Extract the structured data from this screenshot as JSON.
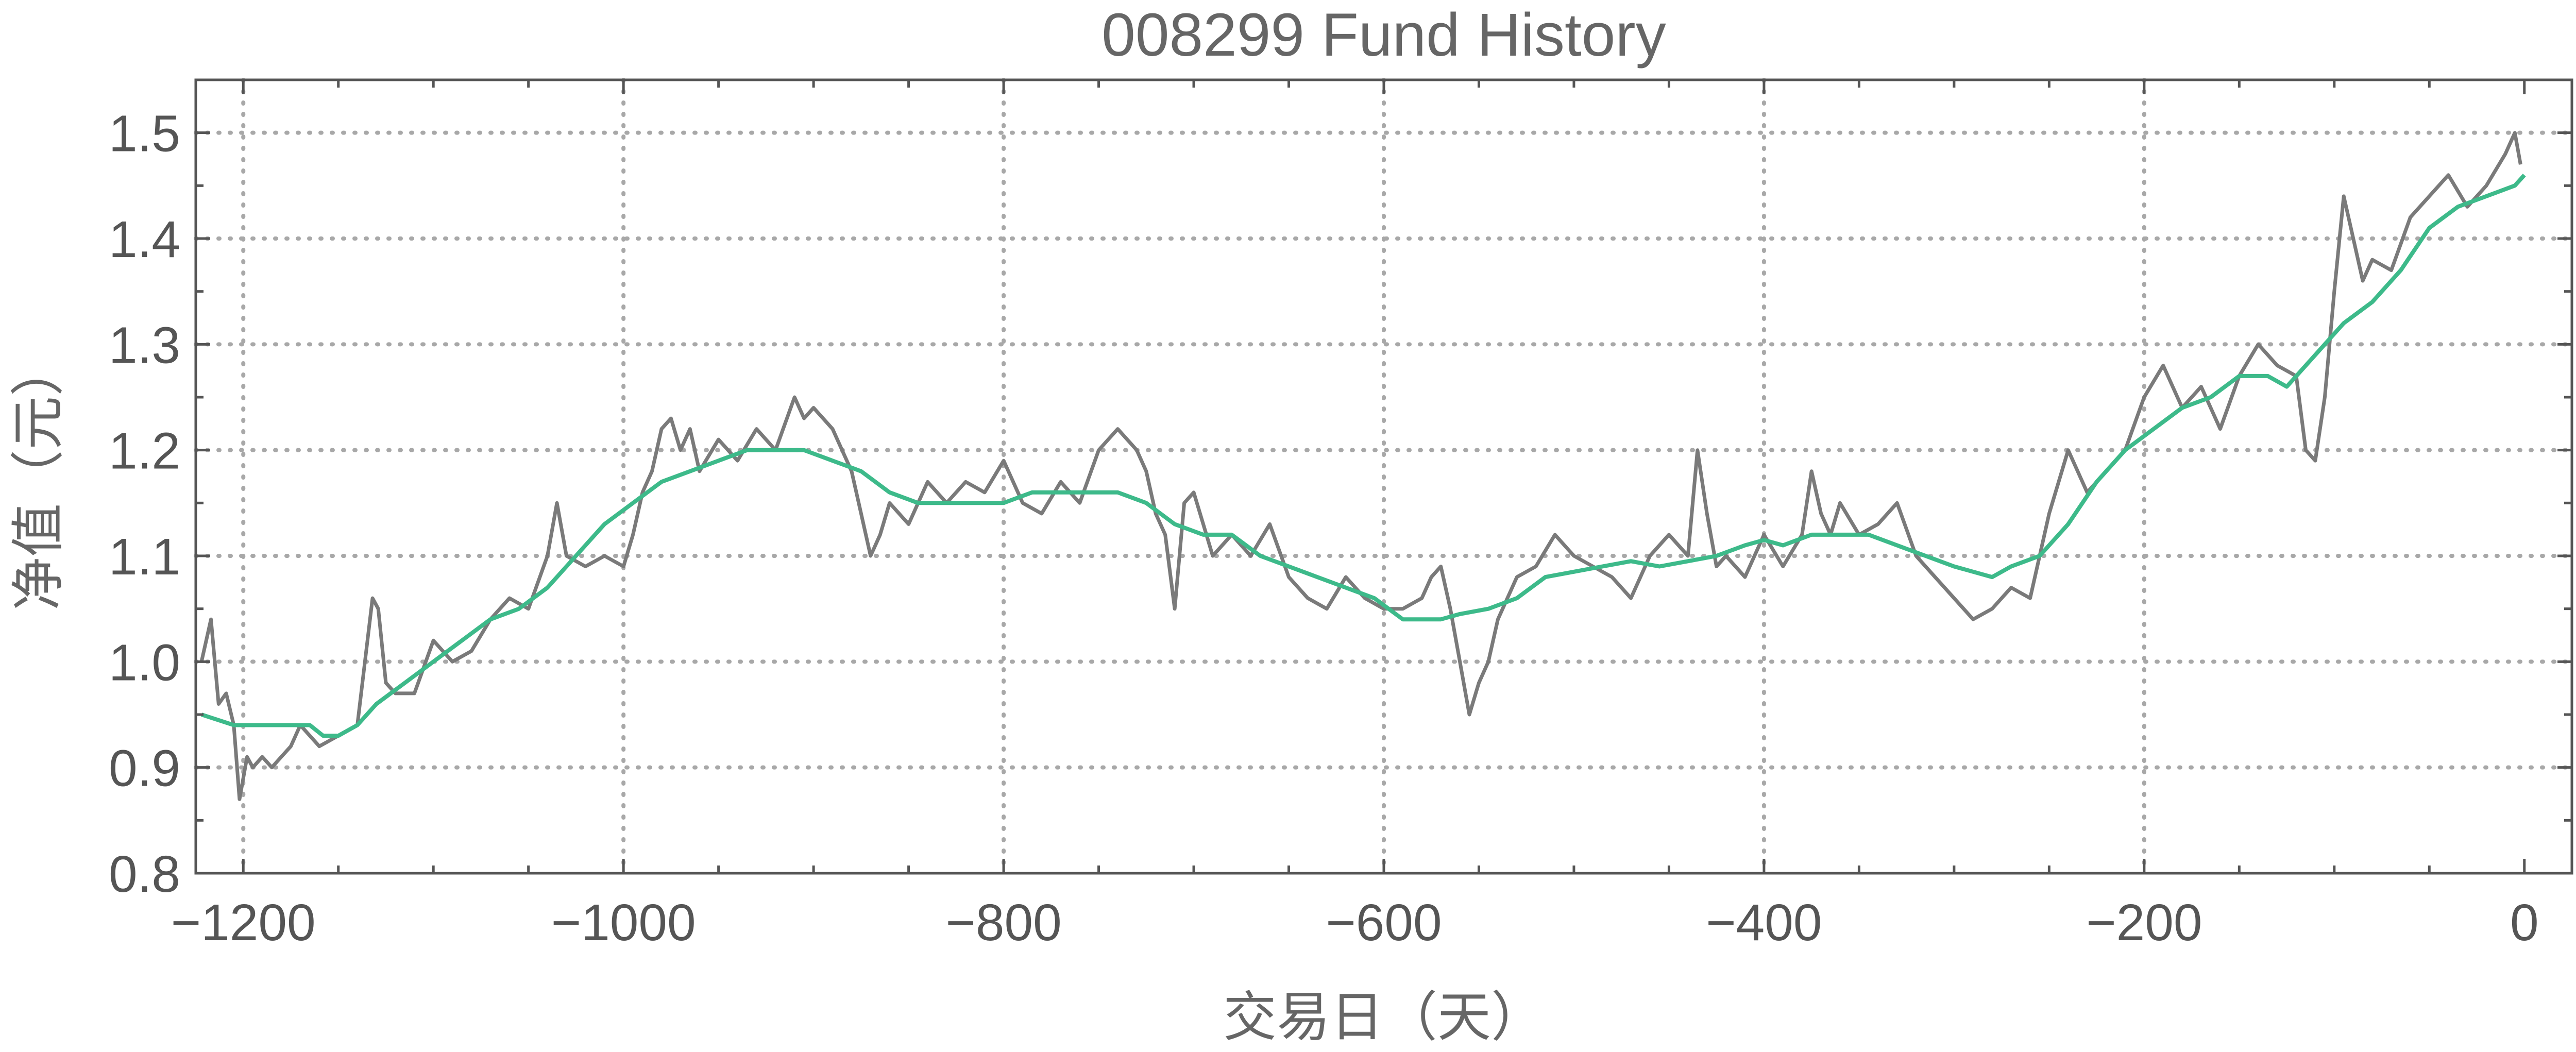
{
  "chart_data": {
    "type": "line",
    "title": "008299 Fund History",
    "xlabel": "交易日（天）",
    "ylabel": "净值（元）",
    "xlim": [
      -1225,
      25
    ],
    "ylim": [
      0.8,
      1.55
    ],
    "x_ticks": [
      -1200,
      -1000,
      -800,
      -600,
      -400,
      -200,
      0
    ],
    "x_tick_labels": [
      "−1200",
      "−1000",
      "−800",
      "−600",
      "−400",
      "−200",
      "0"
    ],
    "y_ticks": [
      0.8,
      0.9,
      1.0,
      1.1,
      1.2,
      1.3,
      1.4,
      1.5
    ],
    "y_tick_labels": [
      "0.8",
      "0.9",
      "1.0",
      "1.1",
      "1.2",
      "1.3",
      "1.4",
      "1.5"
    ],
    "grid": true,
    "colors": {
      "nav": "#7a7a7a",
      "moving_average": "#3dba8a",
      "grid": "#a8a8a8",
      "frame": "#555555"
    },
    "series": [
      {
        "key": "nav",
        "x": [
          -1222,
          -1217,
          -1213,
          -1209,
          -1205,
          -1202,
          -1198,
          -1195,
          -1190,
          -1185,
          -1180,
          -1175,
          -1170,
          -1165,
          -1160,
          -1150,
          -1140,
          -1132,
          -1129,
          -1125,
          -1120,
          -1110,
          -1100,
          -1090,
          -1080,
          -1070,
          -1060,
          -1050,
          -1040,
          -1035,
          -1030,
          -1020,
          -1010,
          -1000,
          -995,
          -990,
          -985,
          -980,
          -975,
          -970,
          -965,
          -960,
          -950,
          -940,
          -930,
          -920,
          -910,
          -905,
          -900,
          -890,
          -880,
          -875,
          -870,
          -865,
          -860,
          -850,
          -840,
          -830,
          -820,
          -810,
          -800,
          -790,
          -780,
          -770,
          -760,
          -750,
          -740,
          -730,
          -725,
          -720,
          -715,
          -710,
          -705,
          -700,
          -695,
          -690,
          -680,
          -670,
          -660,
          -650,
          -640,
          -630,
          -620,
          -610,
          -600,
          -590,
          -580,
          -575,
          -570,
          -565,
          -560,
          -555,
          -550,
          -545,
          -540,
          -530,
          -520,
          -510,
          -500,
          -490,
          -480,
          -470,
          -460,
          -450,
          -440,
          -435,
          -430,
          -425,
          -420,
          -410,
          -400,
          -390,
          -380,
          -375,
          -370,
          -365,
          -360,
          -350,
          -340,
          -330,
          -320,
          -310,
          -300,
          -290,
          -280,
          -270,
          -260,
          -250,
          -240,
          -230,
          -220,
          -210,
          -200,
          -190,
          -180,
          -170,
          -160,
          -150,
          -140,
          -130,
          -120,
          -115,
          -110,
          -105,
          -100,
          -95,
          -90,
          -85,
          -80,
          -70,
          -60,
          -50,
          -40,
          -30,
          -20,
          -10,
          -5,
          -2
        ],
        "values": [
          1.0,
          1.04,
          0.96,
          0.97,
          0.94,
          0.87,
          0.91,
          0.9,
          0.91,
          0.9,
          0.91,
          0.92,
          0.94,
          0.93,
          0.92,
          0.93,
          0.94,
          1.06,
          1.05,
          0.98,
          0.97,
          0.97,
          1.02,
          1.0,
          1.01,
          1.04,
          1.06,
          1.05,
          1.1,
          1.15,
          1.1,
          1.09,
          1.1,
          1.09,
          1.12,
          1.16,
          1.18,
          1.22,
          1.23,
          1.2,
          1.22,
          1.18,
          1.21,
          1.19,
          1.22,
          1.2,
          1.25,
          1.23,
          1.24,
          1.22,
          1.18,
          1.14,
          1.1,
          1.12,
          1.15,
          1.13,
          1.17,
          1.15,
          1.17,
          1.16,
          1.19,
          1.15,
          1.14,
          1.17,
          1.15,
          1.2,
          1.22,
          1.2,
          1.18,
          1.14,
          1.12,
          1.05,
          1.15,
          1.16,
          1.13,
          1.1,
          1.12,
          1.1,
          1.13,
          1.08,
          1.06,
          1.05,
          1.08,
          1.06,
          1.05,
          1.05,
          1.06,
          1.08,
          1.09,
          1.05,
          1.0,
          0.95,
          0.98,
          1.0,
          1.04,
          1.08,
          1.09,
          1.12,
          1.1,
          1.09,
          1.08,
          1.06,
          1.1,
          1.12,
          1.1,
          1.2,
          1.14,
          1.09,
          1.1,
          1.08,
          1.12,
          1.09,
          1.12,
          1.18,
          1.14,
          1.12,
          1.15,
          1.12,
          1.13,
          1.15,
          1.1,
          1.08,
          1.06,
          1.04,
          1.05,
          1.07,
          1.06,
          1.14,
          1.2,
          1.16,
          1.18,
          1.2,
          1.25,
          1.28,
          1.24,
          1.26,
          1.22,
          1.27,
          1.3,
          1.28,
          1.27,
          1.2,
          1.19,
          1.25,
          1.35,
          1.44,
          1.4,
          1.36,
          1.38,
          1.37,
          1.42,
          1.44,
          1.46,
          1.43,
          1.45,
          1.48,
          1.5,
          1.47
        ]
      },
      {
        "key": "moving_average",
        "x": [
          -1222,
          -1205,
          -1190,
          -1175,
          -1165,
          -1158,
          -1150,
          -1140,
          -1130,
          -1115,
          -1100,
          -1085,
          -1070,
          -1055,
          -1040,
          -1025,
          -1010,
          -995,
          -980,
          -965,
          -950,
          -935,
          -920,
          -905,
          -890,
          -875,
          -860,
          -845,
          -830,
          -815,
          -800,
          -785,
          -770,
          -755,
          -740,
          -725,
          -710,
          -695,
          -680,
          -665,
          -650,
          -635,
          -620,
          -605,
          -590,
          -580,
          -570,
          -560,
          -545,
          -530,
          -515,
          -500,
          -485,
          -470,
          -455,
          -440,
          -425,
          -410,
          -400,
          -390,
          -375,
          -360,
          -345,
          -330,
          -315,
          -300,
          -290,
          -280,
          -270,
          -255,
          -240,
          -225,
          -210,
          -195,
          -180,
          -165,
          -150,
          -135,
          -125,
          -110,
          -95,
          -80,
          -65,
          -50,
          -35,
          -20,
          -5,
          0
        ],
        "values": [
          0.95,
          0.94,
          0.94,
          0.94,
          0.94,
          0.93,
          0.93,
          0.94,
          0.96,
          0.98,
          1.0,
          1.02,
          1.04,
          1.05,
          1.07,
          1.1,
          1.13,
          1.15,
          1.17,
          1.18,
          1.19,
          1.2,
          1.2,
          1.2,
          1.19,
          1.18,
          1.16,
          1.15,
          1.15,
          1.15,
          1.15,
          1.16,
          1.16,
          1.16,
          1.16,
          1.15,
          1.13,
          1.12,
          1.12,
          1.1,
          1.09,
          1.08,
          1.07,
          1.06,
          1.04,
          1.04,
          1.04,
          1.045,
          1.05,
          1.06,
          1.08,
          1.085,
          1.09,
          1.095,
          1.09,
          1.095,
          1.1,
          1.11,
          1.115,
          1.11,
          1.12,
          1.12,
          1.12,
          1.11,
          1.1,
          1.09,
          1.085,
          1.08,
          1.09,
          1.1,
          1.13,
          1.17,
          1.2,
          1.22,
          1.24,
          1.25,
          1.27,
          1.27,
          1.26,
          1.29,
          1.32,
          1.34,
          1.37,
          1.41,
          1.43,
          1.44,
          1.45,
          1.46
        ]
      }
    ]
  }
}
